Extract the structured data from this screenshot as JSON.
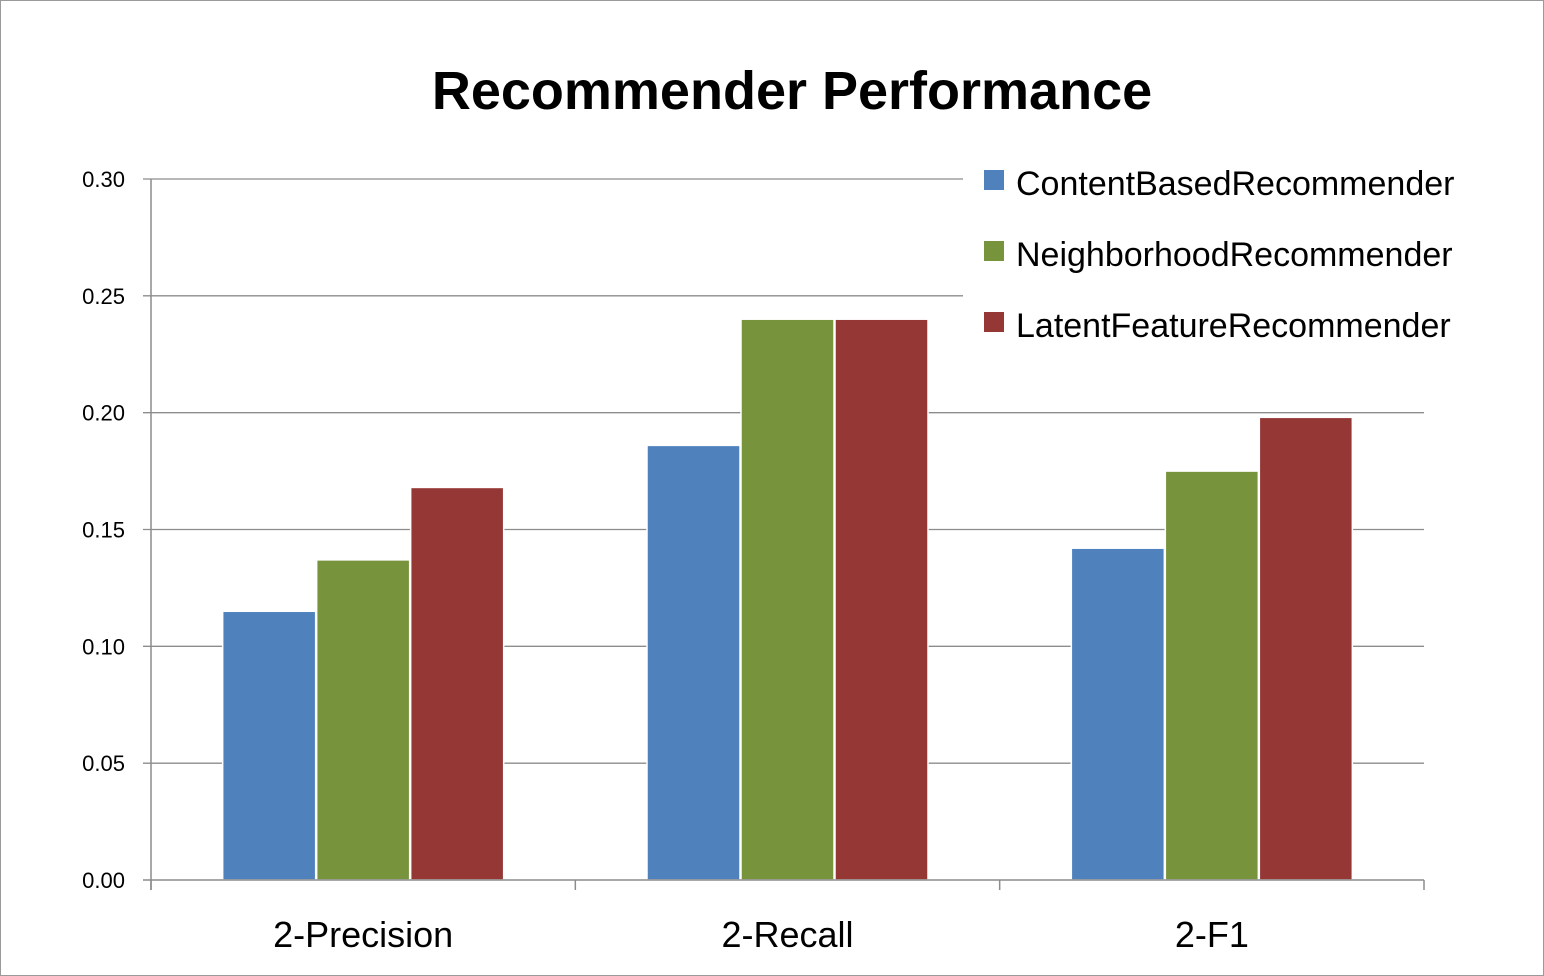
{
  "chart_data": {
    "type": "bar",
    "title": "Recommender Performance",
    "xlabel": "",
    "ylabel": "",
    "categories": [
      "2-Precision",
      "2-Recall",
      "2-F1"
    ],
    "series": [
      {
        "name": "ContentBasedRecommender",
        "color": "#4F81BD",
        "values": [
          0.115,
          0.186,
          0.142
        ]
      },
      {
        "name": "NeighborhoodRecommender",
        "color": "#77933C",
        "values": [
          0.137,
          0.24,
          0.175
        ]
      },
      {
        "name": "LatentFeatureRecommender",
        "color": "#953735",
        "values": [
          0.168,
          0.24,
          0.198
        ]
      }
    ],
    "ylim": [
      0,
      0.3
    ],
    "yticks": [
      "0.00",
      "0.05",
      "0.10",
      "0.15",
      "0.20",
      "0.25",
      "0.30"
    ],
    "grid": true,
    "legend_position": "top-right"
  }
}
